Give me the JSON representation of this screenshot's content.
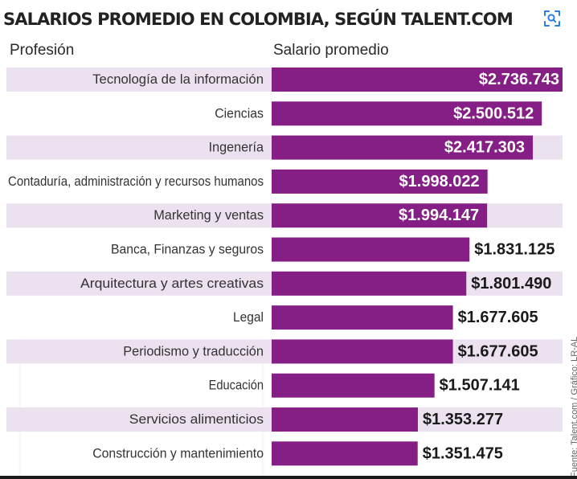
{
  "title": "SALARIOS PROMEDIO EN COLOMBIA, SEGÚN TALENT.COM",
  "headers": {
    "profession": "Profesión",
    "salary": "Salario promedio"
  },
  "source": "Fuente: Talent.com / Gráfico: LR-AL",
  "icons": {
    "lens": "image-search-icon"
  },
  "colors": {
    "bar": "#851e85",
    "stripe": "#ece1ee",
    "label_inside": "#ffffff",
    "label_outside": "#1a1a1a",
    "icon": "#2a7de1"
  },
  "chart_data": {
    "type": "bar",
    "orientation": "horizontal",
    "title": "SALARIOS PROMEDIO EN COLOMBIA, SEGÚN TALENT.COM",
    "xlabel": "Salario promedio",
    "ylabel": "Profesión",
    "categories": [
      "Tecnología de la información",
      "Ciencias",
      "Ingenería",
      "Contaduría, administración y recursos humanos",
      "Marketing y ventas",
      "Banca, Finanzas y seguros",
      "Arquitectura y artes creativas",
      "Legal",
      "Periodismo y traducción",
      "Educación",
      "Servicios alimenticios",
      "Construcción y mantenimiento"
    ],
    "values": [
      2736743,
      2500512,
      2417303,
      1998022,
      1994147,
      1831125,
      1801490,
      1677605,
      1677605,
      1507141,
      1353277,
      1351475
    ],
    "value_labels": [
      "$2.736.743",
      "$2.500.512",
      "$2.417.303",
      "$1.998.022",
      "$1.994.147",
      "$1.831.125",
      "$1.801.490",
      "$1.677.605",
      "$1.677.605",
      "$1.507.141",
      "$1.353.277",
      "$1.351.475"
    ],
    "label_inside": [
      true,
      true,
      true,
      true,
      true,
      false,
      false,
      false,
      false,
      false,
      false,
      false
    ],
    "xlim": [
      0,
      2736743
    ],
    "grid": false,
    "legend": "none"
  }
}
